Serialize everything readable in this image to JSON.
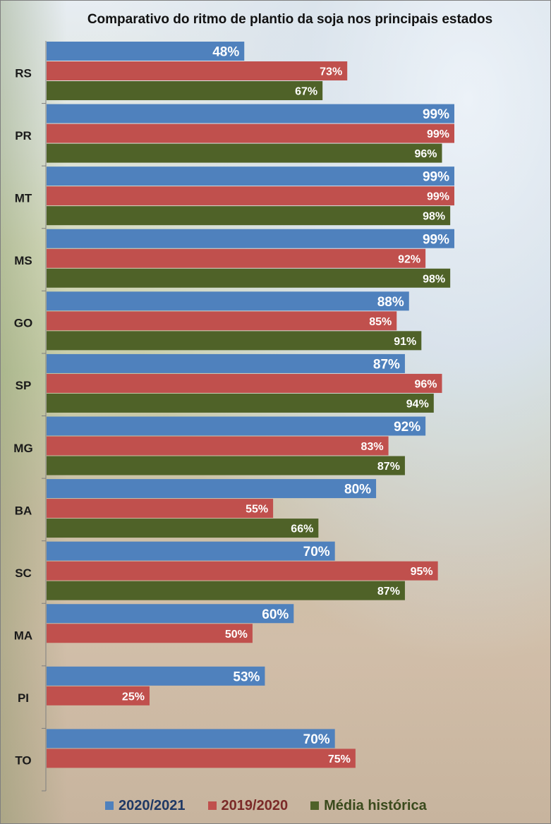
{
  "chart_data": {
    "type": "bar",
    "orientation": "horizontal",
    "title": "Comparativo do ritmo de plantio da soja nos principais estados",
    "categories": [
      "RS",
      "PR",
      "MT",
      "MS",
      "GO",
      "SP",
      "MG",
      "BA",
      "SC",
      "MA",
      "PI",
      "TO"
    ],
    "series": [
      {
        "name": "2020/2021",
        "color": "#4f81bd",
        "label_color": "#ffffff",
        "values": [
          48,
          99,
          99,
          99,
          88,
          87,
          92,
          80,
          70,
          60,
          53,
          70
        ]
      },
      {
        "name": "2019/2020",
        "color": "#c0504d",
        "label_color": "#ffffff",
        "values": [
          73,
          99,
          99,
          92,
          85,
          96,
          83,
          55,
          95,
          50,
          25,
          75
        ]
      },
      {
        "name": "Média histórica",
        "color": "#4f6228",
        "label_color": "#ffffff",
        "values": [
          67,
          96,
          98,
          98,
          91,
          94,
          87,
          66,
          87,
          null,
          null,
          null
        ]
      }
    ],
    "value_suffix": "%",
    "xlim": [
      0,
      120
    ],
    "grid": false,
    "legend_position": "bottom"
  },
  "legend": {
    "items": [
      {
        "label": "2020/2021",
        "color": "#4f81bd",
        "text_color": "#1f3864"
      },
      {
        "label": "2019/2020",
        "color": "#c0504d",
        "text_color": "#7b2a28"
      },
      {
        "label": "Média histórica",
        "color": "#4f6228",
        "text_color": "#3a4a1c"
      }
    ]
  }
}
